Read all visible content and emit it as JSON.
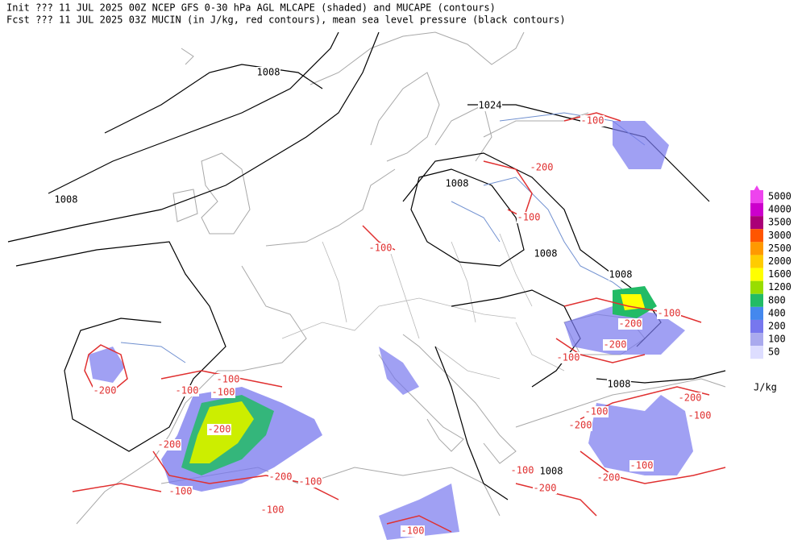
{
  "header": {
    "lines": [
      "Init  ??? 11 JUL 2025 00Z  NCEP GFS 0-30 hPa AGL MLCAPE (shaded) and MUCAPE (contours)",
      "Fcst ??? 11 JUL 2025 03Z  MUCIN (in J/kg, red contours), mean sea level pressure (black contours)"
    ]
  },
  "contour_labels": [
    "1008",
    "1024",
    "1008",
    "1008",
    "-100",
    "-200",
    "-100",
    "-100",
    "1008",
    "1008",
    "-100",
    "-200",
    "-200",
    "-100",
    "1008",
    "-200",
    "-100",
    "-100",
    "-100",
    "-200",
    "-100",
    "-200",
    "-200",
    "-100",
    "-100",
    "-200",
    "-100",
    "1008",
    "-200",
    "-200",
    "-100",
    "-100",
    "-100",
    "-100",
    "-200"
  ],
  "colorbar": {
    "labels": [
      "5000",
      "4000",
      "3500",
      "3000",
      "2500",
      "2000",
      "1600",
      "1200",
      "800",
      "400",
      "200",
      "100",
      "50"
    ],
    "colors": [
      "#ee44ee",
      "#cc00cc",
      "#aa0077",
      "#ff5500",
      "#ff9900",
      "#ffcc00",
      "#ffff00",
      "#99dd00",
      "#22bb66",
      "#4488ee",
      "#7777ee",
      "#aaaaee",
      "#ddddff"
    ],
    "unit": "J/kg"
  }
}
